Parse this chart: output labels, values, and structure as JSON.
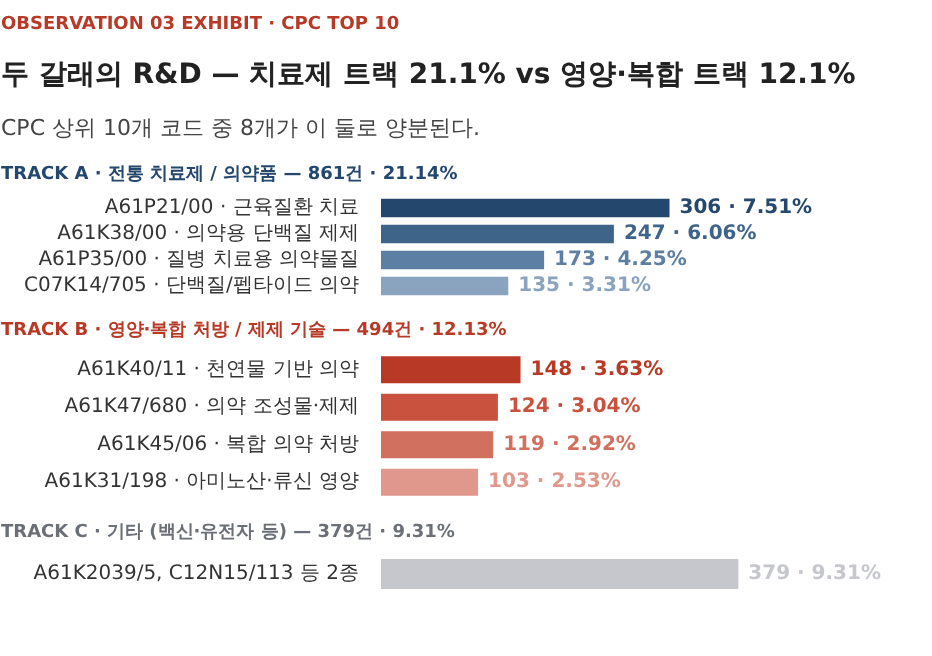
{
  "chart_data": [
    {
      "type": "bar",
      "orientation": "horizontal",
      "title": "두 갈래의 R&D — 치료제 트랙 21.1% vs 영양·복합 트랙 12.1%",
      "subtitle": "CPC 상위 10개 코드 중 8개가 이 둘로 양분된다.",
      "annotations": [
        "OBSERVATION 03",
        "EXHIBIT · CPC TOP 10",
        "TRACK A · 전통 치료제 / 의약품 — 861건 · 21.14%"
      ],
      "categories": [
        "A61P21/00 · 근육질환 치료",
        "A61K38/00 · 의약용 단백질 제제",
        "A61P35/00 · 질병 치료용 의약물질",
        "C07K14/705 · 단백질/펩타이드 의약"
      ],
      "values": [
        306,
        247,
        173,
        135
      ],
      "colors": [
        "#24476e",
        "#3f6489",
        "#5d7fa3",
        "#8aa3bf"
      ],
      "value_labels": [
        "306 · 7.51%",
        "247 · 6.06%",
        "173 · 4.25%",
        "135 · 3.31%"
      ]
    },
    {
      "type": "bar",
      "orientation": "horizontal",
      "title": "TRACK B · 영양·복합 처방 / 제제 기술 — 494건 · 12.13%",
      "categories": [
        "A61K40/11 · 천연물 기반 의약",
        "A61K47/680 · 의약 조성물·제제",
        "A61K45/06 · 복합 의약 처방",
        "A61K31/198 · 아미노산·류신 영양"
      ],
      "values": [
        148,
        124,
        119,
        103
      ],
      "colors": [
        "#b83a26",
        "#c9523e",
        "#d2705f",
        "#e0988d"
      ],
      "value_labels": [
        "148 · 3.63%",
        "124 · 3.04%",
        "119 · 2.92%",
        "103 · 2.53%"
      ]
    },
    {
      "type": "bar",
      "orientation": "horizontal",
      "title": "TRACK C · 기타 (백신·유전자 등) — 379건 · 9.31%",
      "categories": [
        "A61K2039/5, C12N15/113 등 2종"
      ],
      "values": [
        379
      ],
      "colors": [
        "#c5c7cc"
      ],
      "value_labels": [
        "379 · 9.31%"
      ]
    }
  ]
}
